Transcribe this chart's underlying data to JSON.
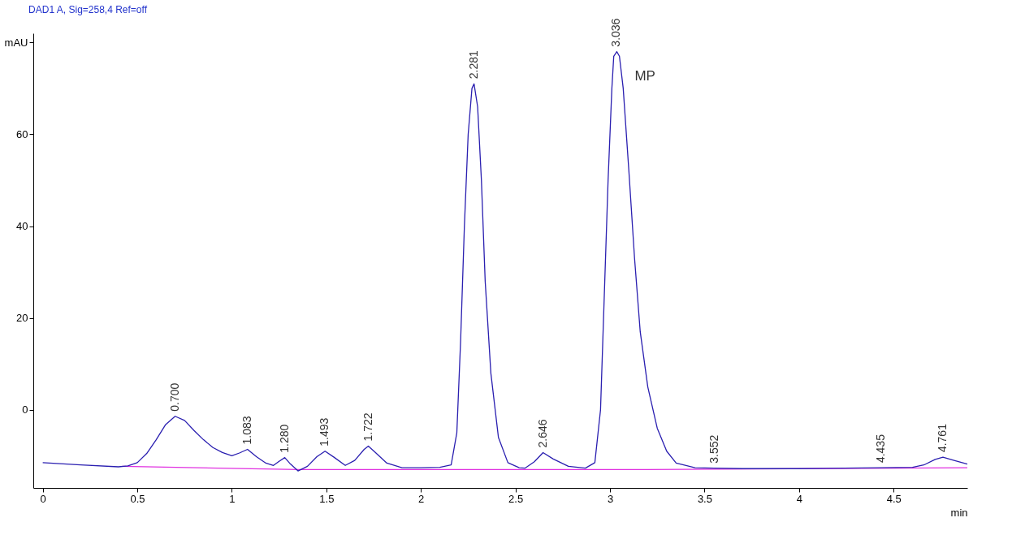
{
  "chart_data": {
    "type": "line",
    "title": "DAD1 A, Sig=258,4 Ref=off",
    "xlabel": "min",
    "xlim": [
      -0.05,
      4.89
    ],
    "xticks": [
      0,
      0.5,
      1,
      1.5,
      2,
      2.5,
      3,
      3.5,
      4,
      4.5
    ],
    "ylim": [
      -17,
      82
    ],
    "yticks": [
      0,
      20,
      40,
      60,
      {
        "value": 80,
        "label": "mAU"
      }
    ],
    "grid": false,
    "marker": "none",
    "line_style": "solid",
    "series": [
      {
        "color": "#2a1fb0",
        "x": [
          0,
          0.2,
          0.4,
          0.45,
          0.5,
          0.55,
          0.6,
          0.65,
          0.7,
          0.75,
          0.8,
          0.85,
          0.9,
          0.95,
          1.0,
          1.04,
          1.083,
          1.13,
          1.18,
          1.22,
          1.25,
          1.28,
          1.31,
          1.35,
          1.4,
          1.45,
          1.493,
          1.54,
          1.6,
          1.65,
          1.7,
          1.722,
          1.76,
          1.82,
          1.9,
          2.0,
          2.1,
          2.16,
          2.19,
          2.21,
          2.23,
          2.25,
          2.27,
          2.281,
          2.3,
          2.32,
          2.34,
          2.37,
          2.41,
          2.46,
          2.52,
          2.55,
          2.6,
          2.646,
          2.7,
          2.78,
          2.87,
          2.92,
          2.95,
          2.97,
          2.99,
          3.01,
          3.02,
          3.036,
          3.05,
          3.07,
          3.1,
          3.13,
          3.16,
          3.2,
          3.25,
          3.3,
          3.35,
          3.45,
          3.552,
          3.7,
          4.0,
          4.435,
          4.6,
          4.66,
          4.72,
          4.761,
          4.82,
          4.89
        ],
        "values": [
          -11.5,
          -12.0,
          -12.4,
          -12.2,
          -11.5,
          -9.5,
          -6.5,
          -3.2,
          -1.4,
          -2.3,
          -4.5,
          -6.5,
          -8.2,
          -9.3,
          -10.0,
          -9.4,
          -8.6,
          -10.2,
          -11.6,
          -12.1,
          -11.2,
          -10.4,
          -11.8,
          -13.3,
          -12.3,
          -10.2,
          -9.0,
          -10.3,
          -12.1,
          -11.0,
          -8.6,
          -7.9,
          -9.3,
          -11.6,
          -12.6,
          -12.6,
          -12.5,
          -12.0,
          -5,
          15,
          40,
          60,
          70,
          71,
          66,
          50,
          28,
          8,
          -6,
          -11.5,
          -12.6,
          -12.7,
          -11.3,
          -9.3,
          -10.7,
          -12.3,
          -12.7,
          -11.5,
          0,
          25,
          50,
          70,
          77,
          78,
          77,
          70,
          52,
          33,
          17,
          5,
          -4,
          -9,
          -11.6,
          -12.6,
          -12.7,
          -12.8,
          -12.8,
          -12.6,
          -12.5,
          -12.0,
          -10.8,
          -10.3,
          -11.0,
          -11.8
        ]
      },
      {
        "color": "#e030e0",
        "x": [
          0.42,
          1.35,
          2.0,
          3.2,
          4.89
        ],
        "values": [
          -12.3,
          -13.0,
          -13.0,
          -13.0,
          -12.6
        ]
      }
    ],
    "annotations": [
      {
        "text": "0.700",
        "x": 0.7,
        "y": -1.4
      },
      {
        "text": "1.083",
        "x": 1.083,
        "y": -8.6
      },
      {
        "text": "1.280",
        "x": 1.28,
        "y": -10.4
      },
      {
        "text": "1.493",
        "x": 1.493,
        "y": -9.0
      },
      {
        "text": "1.722",
        "x": 1.722,
        "y": -7.9
      },
      {
        "text": "2.281",
        "x": 2.281,
        "y": 71
      },
      {
        "text": "2.646",
        "x": 2.646,
        "y": -9.3
      },
      {
        "text": "3.036",
        "x": 3.036,
        "y": 78
      },
      {
        "text": "3.552",
        "x": 3.552,
        "y": -12.7
      },
      {
        "text": "4.435",
        "x": 4.435,
        "y": -12.6
      },
      {
        "text": "4.761",
        "x": 4.761,
        "y": -10.3
      },
      {
        "text": "MP",
        "x": 3.036,
        "y": 78
      }
    ]
  }
}
